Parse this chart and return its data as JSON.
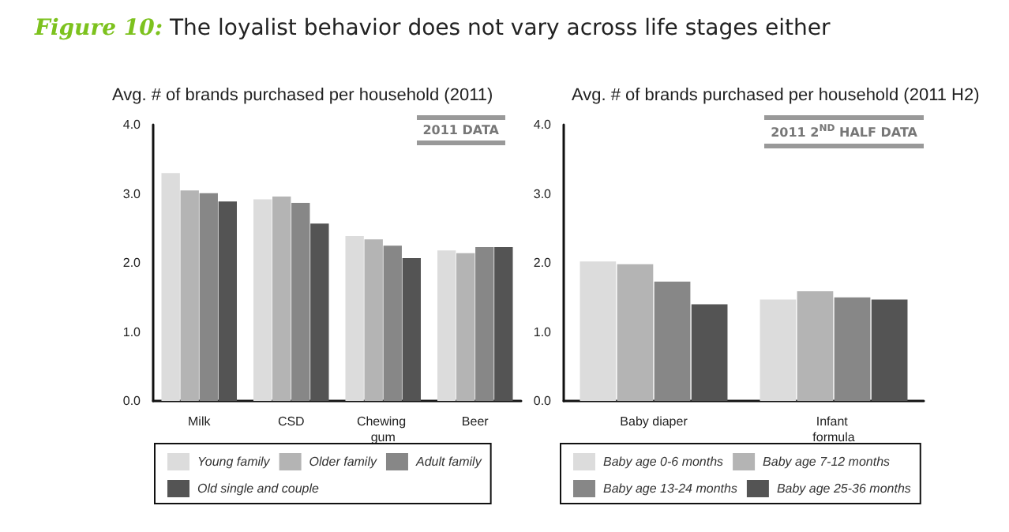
{
  "chart_data": [
    {
      "type": "bar",
      "title": "Figure 10: The loyalist behavior does not vary across life stages either",
      "subtitle": "Avg. # of brands purchased per household (2011)",
      "annotations": [
        "2011 DATA"
      ],
      "categories": [
        "Milk",
        "CSD",
        "Chewing gum",
        "Beer"
      ],
      "series": [
        {
          "name": "Young family",
          "color": "#dcdcdc",
          "values": [
            3.3,
            2.92,
            2.39,
            2.18
          ]
        },
        {
          "name": "Older family",
          "color": "#b4b4b4",
          "values": [
            3.05,
            2.96,
            2.34,
            2.14
          ]
        },
        {
          "name": "Adult family",
          "color": "#878787",
          "values": [
            3.01,
            2.87,
            2.25,
            2.23
          ]
        },
        {
          "name": "Old single and couple",
          "color": "#545454",
          "values": [
            2.89,
            2.57,
            2.07,
            2.23
          ]
        }
      ],
      "ylim": [
        0,
        4
      ],
      "yticks": [
        {
          "value": 0,
          "label": "0.0"
        },
        {
          "value": 1,
          "label": "1.0"
        },
        {
          "value": 2,
          "label": "2.0"
        },
        {
          "value": 3,
          "label": "3.0"
        },
        {
          "value": 4,
          "label": "4.0"
        }
      ],
      "grid": false,
      "legend": "bottom"
    },
    {
      "type": "bar",
      "subtitle": "Avg. # of brands purchased per household (2011 H2)",
      "annotations": [
        "2011 2$^{ND}$ HALF DATA"
      ],
      "categories": [
        "Baby diaper",
        "Infant formula"
      ],
      "series": [
        {
          "name": "Baby age 0-6 months",
          "color": "#dcdcdc",
          "values": [
            2.02,
            1.47
          ]
        },
        {
          "name": "Baby age 7-12 months",
          "color": "#b4b4b4",
          "values": [
            1.98,
            1.59
          ]
        },
        {
          "name": "Baby age 13-24 months",
          "color": "#878787",
          "values": [
            1.73,
            1.5
          ]
        },
        {
          "name": "Baby age 25-36 months",
          "color": "#545454",
          "values": [
            1.4,
            1.47
          ]
        }
      ],
      "ylim": [
        0,
        4
      ],
      "yticks": [
        {
          "value": 0,
          "label": "0.0"
        },
        {
          "value": 1,
          "label": "1.0"
        },
        {
          "value": 2,
          "label": "2.0"
        },
        {
          "value": 3,
          "label": "3.0"
        },
        {
          "value": 4,
          "label": "4.0"
        }
      ],
      "grid": false,
      "legend": "bottom"
    }
  ]
}
